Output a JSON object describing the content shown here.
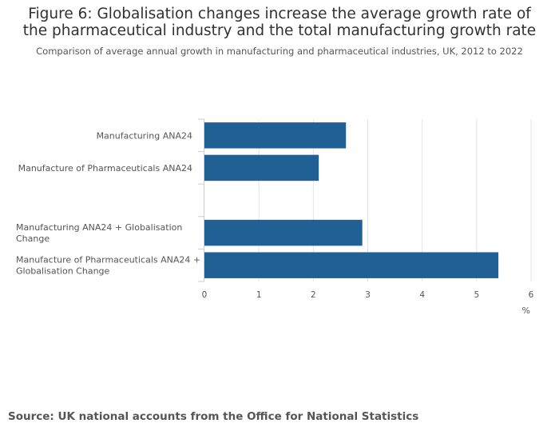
{
  "header": {
    "title": "Figure 6: Globalisation changes increase the average growth rate of the pharmaceutical industry and the total manufacturing growth rate",
    "subtitle": "Comparison of average annual growth in manufacturing and pharmaceutical industries, UK, 2012 to 2022"
  },
  "footer": {
    "source": "Source: UK national accounts from the Office for National Statistics"
  },
  "colors": {
    "bar": "#206095",
    "grid": "#e3e3e3",
    "axis": "#cccccc"
  },
  "chart_data": {
    "type": "bar",
    "orientation": "horizontal",
    "categories": [
      [
        "Manufacturing ANA24"
      ],
      [
        "Manufacture of Pharmaceuticals ANA24"
      ],
      [
        ""
      ],
      [
        "Manufacturing ANA24 + Globalisation",
        "Change"
      ],
      [
        "Manufacture of Pharmaceuticals ANA24 +",
        "Globalisation Change"
      ]
    ],
    "values": [
      2.6,
      2.1,
      null,
      2.9,
      5.4
    ],
    "xlim": [
      0,
      6
    ],
    "xticks": [
      0,
      1,
      2,
      3,
      4,
      5,
      6
    ],
    "xlabel": "%",
    "ylabel": "",
    "grid": true,
    "legend": false
  }
}
